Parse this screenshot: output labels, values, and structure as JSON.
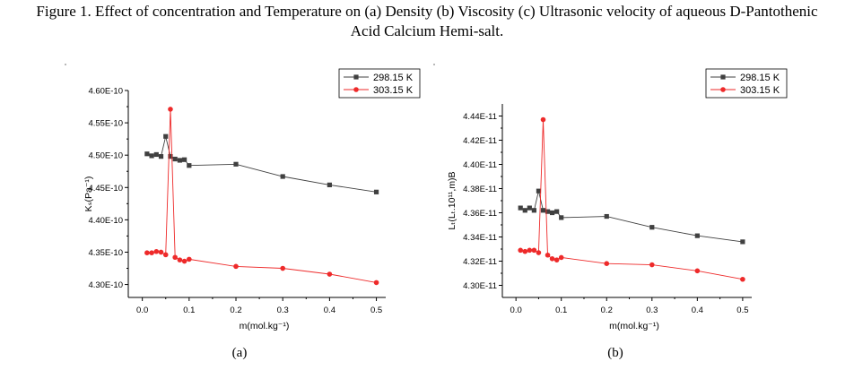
{
  "caption": {
    "line1": "Figure 1. Effect of concentration and Temperature on (a) Density (b) Viscosity (c) Ultrasonic velocity of aqueous D-Pantothenic",
    "line2": "Acid Calcium Hemi-salt."
  },
  "chart_data": [
    {
      "type": "line",
      "panel_label": "(a)",
      "xlabel": "m(mol.kg⁻¹)",
      "ylabel": "Kₛ(Pa⁻¹)",
      "xlim": [
        -0.03,
        0.52
      ],
      "ylim": [
        4.28e-10,
        4.6e-10
      ],
      "x_ticks": [
        0.0,
        0.1,
        0.2,
        0.3,
        0.4,
        0.5
      ],
      "x_tick_labels": [
        "0.0",
        "0.1",
        "0.2",
        "0.3",
        "0.4",
        "0.5"
      ],
      "y_ticks": [
        4.3e-10,
        4.35e-10,
        4.4e-10,
        4.45e-10,
        4.5e-10,
        4.55e-10,
        4.6e-10
      ],
      "y_tick_labels": [
        "4.30E-10",
        "4.35E-10",
        "4.40E-10",
        "4.45E-10",
        "4.50E-10",
        "4.55E-10",
        "4.60E-10"
      ],
      "grid": false,
      "legend_position": "top-right",
      "series": [
        {
          "name": "298.15 K",
          "color": "#404040",
          "marker": "square",
          "x": [
            0.01,
            0.02,
            0.03,
            0.04,
            0.05,
            0.06,
            0.07,
            0.08,
            0.09,
            0.1,
            0.2,
            0.3,
            0.4,
            0.5
          ],
          "y": [
            4.502e-10,
            4.499e-10,
            4.501e-10,
            4.498e-10,
            4.529e-10,
            4.498e-10,
            4.494e-10,
            4.492e-10,
            4.493e-10,
            4.484e-10,
            4.486e-10,
            4.467e-10,
            4.454e-10,
            4.443e-10
          ]
        },
        {
          "name": "303.15 K",
          "color": "#ee2a2a",
          "marker": "circle",
          "x": [
            0.01,
            0.02,
            0.03,
            0.04,
            0.05,
            0.06,
            0.07,
            0.08,
            0.09,
            0.1,
            0.2,
            0.3,
            0.4,
            0.5
          ],
          "y": [
            4.349e-10,
            4.349e-10,
            4.351e-10,
            4.35e-10,
            4.346e-10,
            4.571e-10,
            4.342e-10,
            4.338e-10,
            4.336e-10,
            4.339e-10,
            4.328e-10,
            4.325e-10,
            4.316e-10,
            4.303e-10
          ]
        }
      ]
    },
    {
      "type": "line",
      "panel_label": "(b)",
      "xlabel": "m(mol.kg⁻¹)",
      "ylabel": "Lₜ(Lₜ.10¹¹,m)B",
      "xlim": [
        -0.03,
        0.52
      ],
      "ylim": [
        4.29e-11,
        4.45e-11
      ],
      "x_ticks": [
        0.0,
        0.1,
        0.2,
        0.3,
        0.4,
        0.5
      ],
      "x_tick_labels": [
        "0.0",
        "0.1",
        "0.2",
        "0.3",
        "0.4",
        "0.5"
      ],
      "y_ticks": [
        4.3e-11,
        4.32e-11,
        4.34e-11,
        4.36e-11,
        4.38e-11,
        4.4e-11,
        4.42e-11,
        4.44e-11
      ],
      "y_tick_labels": [
        "4.30E-11",
        "4.32E-11",
        "4.34E-11",
        "4.36E-11",
        "4.38E-11",
        "4.40E-11",
        "4.42E-11",
        "4.44E-11"
      ],
      "grid": false,
      "legend_position": "top-right",
      "series": [
        {
          "name": "298.15 K",
          "color": "#404040",
          "marker": "square",
          "x": [
            0.01,
            0.02,
            0.03,
            0.04,
            0.05,
            0.06,
            0.07,
            0.08,
            0.09,
            0.1,
            0.2,
            0.3,
            0.4,
            0.5
          ],
          "y": [
            4.364e-11,
            4.362e-11,
            4.364e-11,
            4.362e-11,
            4.378e-11,
            4.362e-11,
            4.361e-11,
            4.36e-11,
            4.361e-11,
            4.356e-11,
            4.357e-11,
            4.348e-11,
            4.341e-11,
            4.336e-11
          ]
        },
        {
          "name": "303.15 K",
          "color": "#ee2a2a",
          "marker": "circle",
          "x": [
            0.01,
            0.02,
            0.03,
            0.04,
            0.05,
            0.06,
            0.07,
            0.08,
            0.09,
            0.1,
            0.2,
            0.3,
            0.4,
            0.5
          ],
          "y": [
            4.329e-11,
            4.328e-11,
            4.329e-11,
            4.329e-11,
            4.327e-11,
            4.437e-11,
            4.325e-11,
            4.322e-11,
            4.321e-11,
            4.323e-11,
            4.318e-11,
            4.317e-11,
            4.312e-11,
            4.305e-11
          ]
        }
      ]
    }
  ]
}
